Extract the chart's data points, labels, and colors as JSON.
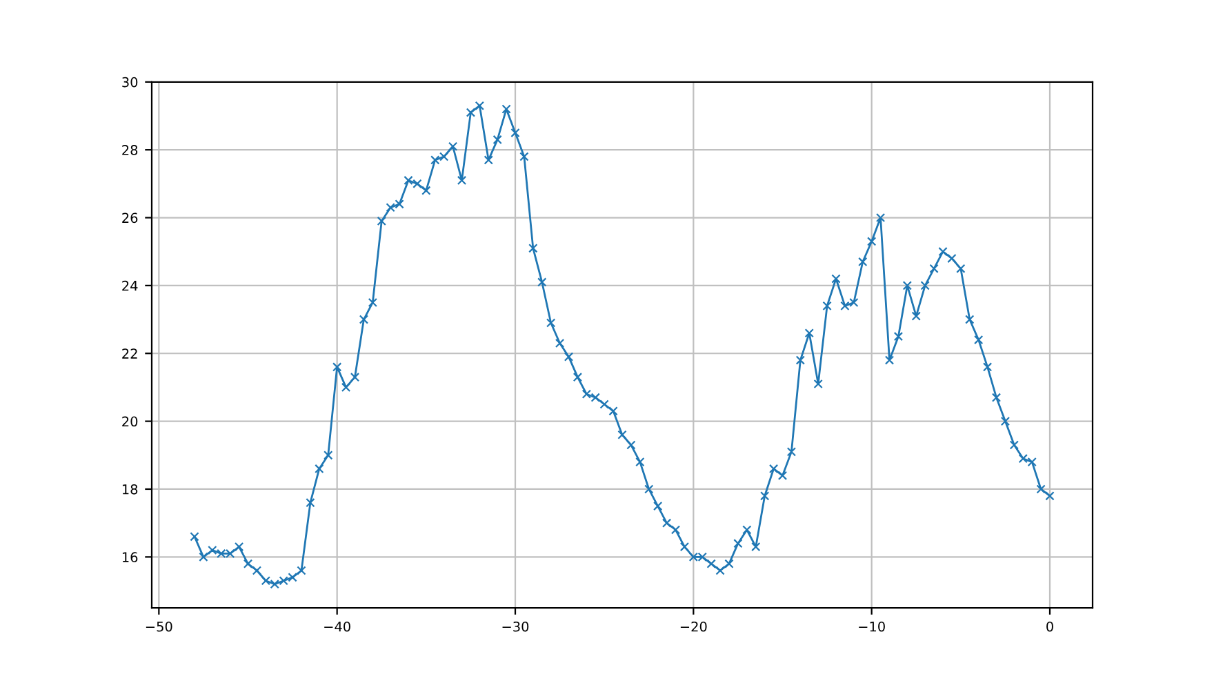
{
  "chart_data": {
    "type": "line",
    "x": [
      -48,
      -47.5,
      -47,
      -46.5,
      -46,
      -45.5,
      -45,
      -44.5,
      -44,
      -43.5,
      -43,
      -42.5,
      -42,
      -41.5,
      -41,
      -40.5,
      -40,
      -39.5,
      -39,
      -38.5,
      -38,
      -37.5,
      -37,
      -36.5,
      -36,
      -35.5,
      -35,
      -34.5,
      -34,
      -33.5,
      -33,
      -32.5,
      -32,
      -31.5,
      -31,
      -30.5,
      -30,
      -29.5,
      -29,
      -28.5,
      -28,
      -27.5,
      -27,
      -26.5,
      -26,
      -25.5,
      -25,
      -24.5,
      -24,
      -23.5,
      -23,
      -22.5,
      -22,
      -21.5,
      -21,
      -20.5,
      -20,
      -19.5,
      -19,
      -18.5,
      -18,
      -17.5,
      -17,
      -16.5,
      -16,
      -15.5,
      -15,
      -14.5,
      -14,
      -13.5,
      -13,
      -12.5,
      -12,
      -11.5,
      -11,
      -10.5,
      -10,
      -9.5,
      -9,
      -8.5,
      -8,
      -7.5,
      -7,
      -6.5,
      -6,
      -5.5,
      -5,
      -4.5,
      -4,
      -3.5,
      -3,
      -2.5,
      -2,
      -1.5,
      -1,
      -0.5,
      0
    ],
    "series": [
      {
        "color": "#1f77b4",
        "values": [
          16.6,
          16.0,
          16.2,
          16.1,
          16.1,
          16.3,
          15.8,
          15.6,
          15.3,
          15.2,
          15.3,
          15.4,
          15.6,
          17.6,
          18.6,
          19.0,
          21.6,
          21.0,
          21.3,
          23.0,
          23.5,
          25.9,
          26.3,
          26.4,
          27.1,
          27.0,
          26.8,
          27.7,
          27.8,
          28.1,
          27.1,
          29.1,
          29.3,
          27.7,
          28.3,
          29.2,
          28.5,
          27.8,
          25.1,
          24.1,
          22.9,
          22.3,
          21.9,
          21.3,
          20.8,
          20.7,
          20.5,
          20.3,
          19.6,
          19.3,
          18.8,
          18.0,
          17.5,
          17.0,
          16.8,
          16.3,
          16.0,
          16.0,
          15.8,
          15.6,
          15.8,
          16.4,
          16.8,
          16.3,
          17.8,
          18.6,
          18.4,
          19.1,
          21.8,
          22.6,
          21.1,
          23.4,
          24.2,
          23.4,
          23.5,
          24.7,
          25.3,
          26.0,
          21.8,
          22.5,
          24.0,
          23.1,
          24.0,
          24.5,
          25.0,
          24.8,
          24.5,
          23.0,
          22.4,
          21.6,
          20.7,
          20.0,
          19.3,
          18.9,
          18.8,
          18.0,
          17.8
        ]
      }
    ],
    "xlim": [
      -50.4,
      2.4
    ],
    "ylim": [
      14.5,
      30
    ],
    "xticks": [
      {
        "value": -50,
        "label": "−50"
      },
      {
        "value": -40,
        "label": "−40"
      },
      {
        "value": -30,
        "label": "−30"
      },
      {
        "value": -20,
        "label": "−20"
      },
      {
        "value": -10,
        "label": "−10"
      },
      0
    ],
    "yticks": [
      16,
      18,
      20,
      22,
      24,
      26,
      28,
      30
    ],
    "grid": true,
    "marker": "cross",
    "line_style": "solid"
  }
}
